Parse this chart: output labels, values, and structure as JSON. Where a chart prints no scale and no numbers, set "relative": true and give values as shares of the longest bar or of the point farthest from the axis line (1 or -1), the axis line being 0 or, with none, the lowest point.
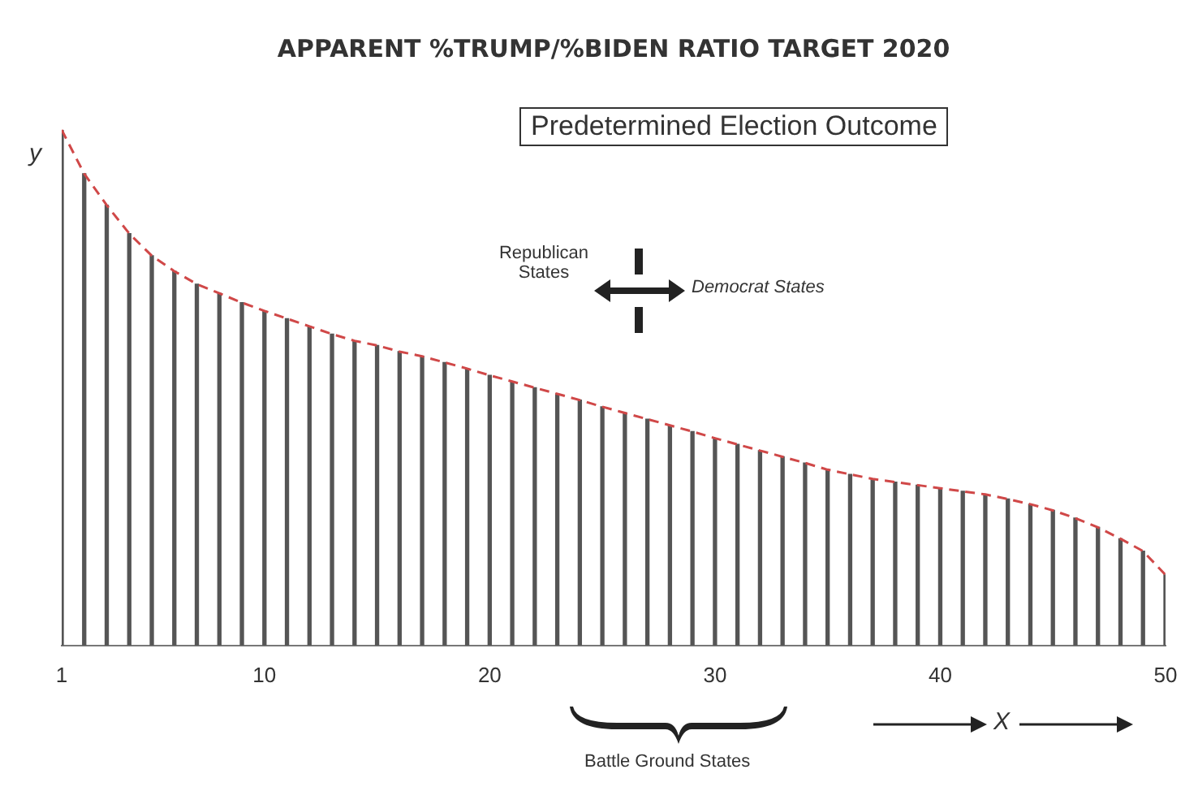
{
  "chart_data": {
    "type": "bar",
    "title": "APPARENT %TRUMP/%BIDEN RATIO TARGET 2020",
    "xlabel": "X",
    "ylabel": "y",
    "relative": true,
    "x": [
      1,
      2,
      3,
      4,
      5,
      6,
      7,
      8,
      9,
      10,
      11,
      12,
      13,
      14,
      15,
      16,
      17,
      18,
      19,
      20,
      21,
      22,
      23,
      24,
      25,
      26,
      27,
      28,
      29,
      30,
      31,
      32,
      33,
      34,
      35,
      36,
      37,
      38,
      39,
      40,
      41,
      42,
      43,
      44,
      45,
      46,
      47,
      48,
      49,
      50
    ],
    "xlim": [
      1,
      50
    ],
    "xticks": [
      1,
      10,
      20,
      30,
      40,
      50
    ],
    "series": [
      {
        "color": "#555555",
        "values": [
          1.0,
          0.915,
          0.854,
          0.799,
          0.756,
          0.726,
          0.701,
          0.683,
          0.665,
          0.649,
          0.634,
          0.619,
          0.604,
          0.591,
          0.582,
          0.57,
          0.561,
          0.549,
          0.537,
          0.524,
          0.512,
          0.5,
          0.488,
          0.476,
          0.463,
          0.451,
          0.439,
          0.427,
          0.415,
          0.402,
          0.39,
          0.378,
          0.366,
          0.354,
          0.341,
          0.332,
          0.323,
          0.317,
          0.311,
          0.305,
          0.299,
          0.293,
          0.284,
          0.274,
          0.262,
          0.247,
          0.229,
          0.207,
          0.183,
          0.137
        ]
      },
      {
        "type": "line",
        "color": "#d04848",
        "line_style": "dashed",
        "marker": "none",
        "values": [
          1.0,
          0.915,
          0.854,
          0.799,
          0.756,
          0.726,
          0.701,
          0.683,
          0.665,
          0.649,
          0.634,
          0.619,
          0.604,
          0.591,
          0.582,
          0.57,
          0.561,
          0.549,
          0.537,
          0.524,
          0.512,
          0.5,
          0.488,
          0.476,
          0.463,
          0.451,
          0.439,
          0.427,
          0.415,
          0.402,
          0.39,
          0.378,
          0.366,
          0.354,
          0.341,
          0.332,
          0.323,
          0.317,
          0.311,
          0.305,
          0.299,
          0.293,
          0.284,
          0.274,
          0.262,
          0.247,
          0.229,
          0.207,
          0.183,
          0.137
        ]
      }
    ],
    "annotations": [
      "Predetermined Election Outcome",
      "Republican States",
      "Democrat States",
      "Battle Ground States"
    ],
    "grid": false,
    "legend": false
  }
}
